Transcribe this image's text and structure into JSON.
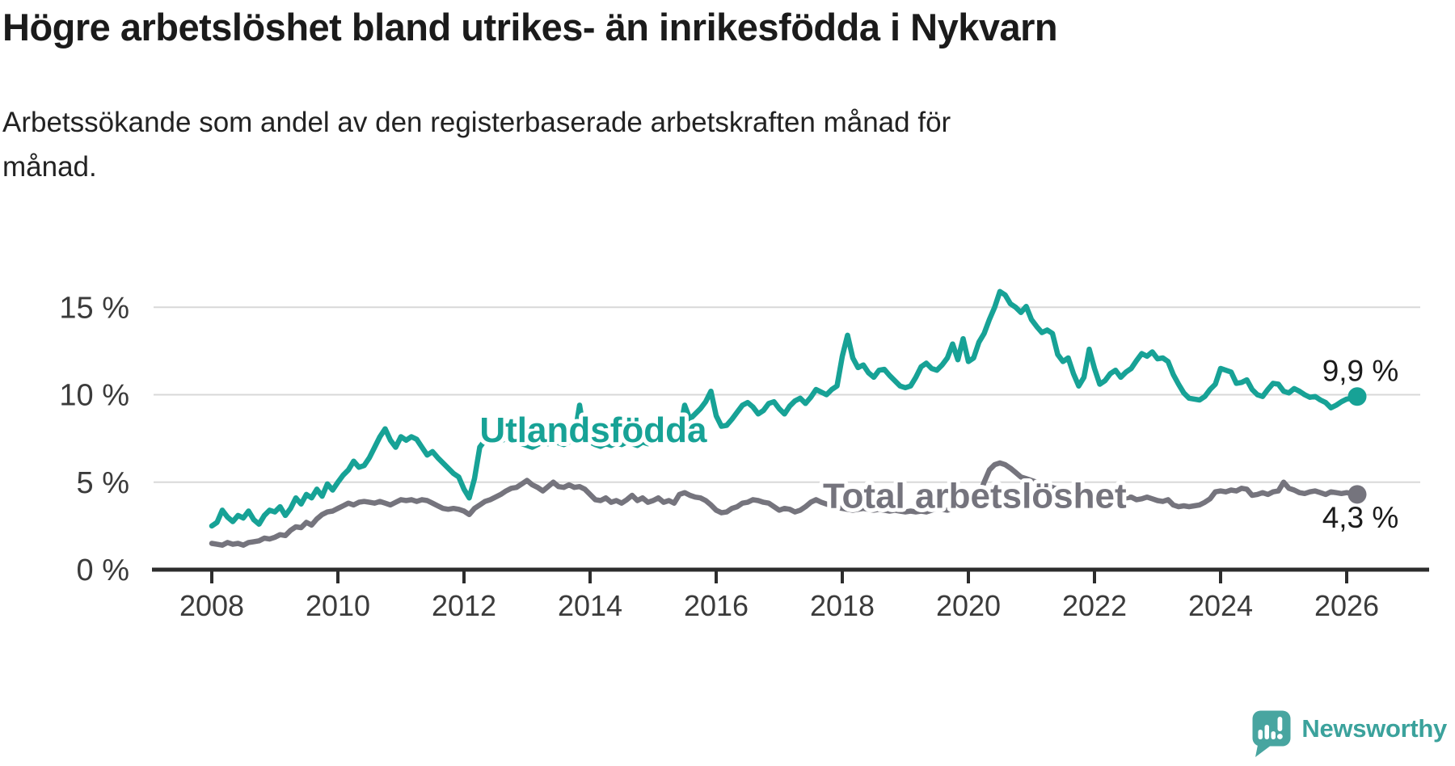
{
  "title": "Högre arbetslöshet bland utrikes- än inrikesfödda i Nykvarn",
  "subtitle_line1": "Arbetssökande som andel av den registerbaserade arbetskraften månad för",
  "subtitle_line2": "månad.",
  "branding": {
    "wordmark": "Newsworthy",
    "logo_color": "#48a5a0",
    "wordmark_color": "#3ba29c"
  },
  "chart_data": {
    "type": "line",
    "unit": "%",
    "grid": true,
    "legend": "inline-labels",
    "x_start_year": 2008,
    "x_months_per_point": 1,
    "x_range": [
      "2008-01",
      "2026-03"
    ],
    "ylim": [
      0,
      16.5
    ],
    "colors": {
      "grid": "#d8d8d8",
      "axis": "#2d2d2d",
      "tick_text": "#3b3b3b",
      "value_text": "#1b1b1b"
    },
    "x_ticks": [
      {
        "year": 2008,
        "label": "2008"
      },
      {
        "year": 2010,
        "label": "2010"
      },
      {
        "year": 2012,
        "label": "2012"
      },
      {
        "year": 2014,
        "label": "2014"
      },
      {
        "year": 2016,
        "label": "2016"
      },
      {
        "year": 2018,
        "label": "2018"
      },
      {
        "year": 2020,
        "label": "2020"
      },
      {
        "year": 2022,
        "label": "2022"
      },
      {
        "year": 2024,
        "label": "2024"
      },
      {
        "year": 2026,
        "label": "2026"
      }
    ],
    "y_ticks": [
      {
        "value": 0,
        "label": "0 %"
      },
      {
        "value": 5,
        "label": "5 %"
      },
      {
        "value": 10,
        "label": "10 %"
      },
      {
        "value": 15,
        "label": "15 %"
      }
    ],
    "series": [
      {
        "name": "Utlandsfödda",
        "slug": "utlandsfodda",
        "color": "#17a296",
        "end_label": "9,9 %",
        "end_label_position": "above",
        "label": {
          "year": 2014.05,
          "value": 7.3
        },
        "values": [
          2.5,
          2.7,
          3.4,
          3.0,
          2.75,
          3.1,
          2.95,
          3.35,
          2.85,
          2.6,
          3.1,
          3.4,
          3.3,
          3.6,
          3.1,
          3.5,
          4.1,
          3.75,
          4.3,
          4.1,
          4.6,
          4.2,
          4.9,
          4.55,
          5.0,
          5.4,
          5.7,
          6.2,
          5.85,
          5.95,
          6.4,
          7.0,
          7.6,
          8.05,
          7.4,
          7.0,
          7.6,
          7.4,
          7.6,
          7.45,
          7.0,
          6.55,
          6.75,
          6.4,
          6.1,
          5.8,
          5.5,
          5.3,
          4.6,
          4.1,
          5.2,
          7.0,
          7.4,
          7.3,
          7.45,
          7.35,
          7.5,
          7.4,
          7.3,
          7.2,
          7.1,
          7.0,
          7.15,
          7.3,
          7.2,
          7.35,
          7.25,
          7.15,
          7.3,
          7.5,
          9.4,
          7.6,
          7.3,
          7.15,
          7.05,
          7.2,
          7.1,
          7.25,
          7.15,
          7.3,
          7.2,
          7.1,
          7.3,
          7.2,
          7.3,
          7.4,
          7.3,
          7.5,
          7.6,
          7.8,
          9.4,
          8.6,
          8.9,
          9.2,
          9.6,
          10.2,
          8.8,
          8.2,
          8.25,
          8.6,
          9.0,
          9.4,
          9.55,
          9.3,
          8.9,
          9.1,
          9.5,
          9.6,
          9.2,
          8.9,
          9.35,
          9.65,
          9.8,
          9.5,
          9.85,
          10.3,
          10.15,
          10.0,
          10.3,
          10.5,
          12.2,
          13.4,
          12.1,
          11.55,
          11.7,
          11.25,
          11.0,
          11.4,
          11.45,
          11.1,
          10.8,
          10.5,
          10.4,
          10.5,
          11.0,
          11.6,
          11.8,
          11.5,
          11.4,
          11.7,
          12.1,
          12.9,
          12.0,
          13.2,
          11.9,
          12.1,
          13.0,
          13.5,
          14.3,
          15.0,
          15.9,
          15.7,
          15.2,
          15.0,
          14.7,
          15.05,
          14.3,
          13.9,
          13.55,
          13.7,
          13.5,
          12.3,
          11.9,
          12.1,
          11.2,
          10.5,
          11.0,
          12.6,
          11.5,
          10.6,
          10.8,
          11.2,
          11.4,
          11.0,
          11.3,
          11.5,
          11.95,
          12.35,
          12.2,
          12.45,
          12.05,
          12.1,
          11.9,
          11.15,
          10.6,
          10.1,
          9.8,
          9.75,
          9.7,
          9.9,
          10.3,
          10.6,
          11.5,
          11.4,
          11.3,
          10.65,
          10.7,
          10.85,
          10.3,
          10.0,
          9.9,
          10.3,
          10.65,
          10.6,
          10.2,
          10.1,
          10.35,
          10.2,
          10.0,
          9.85,
          9.9,
          9.7,
          9.55,
          9.25,
          9.4,
          9.6,
          9.75,
          9.8,
          9.9
        ]
      },
      {
        "name": "Total arbetslöshet",
        "slug": "total-arbetsloshet",
        "color": "#75747d",
        "end_label": "4,3 %",
        "end_label_position": "below",
        "label": {
          "year": 2020.1,
          "value": 3.54
        },
        "values": [
          1.5,
          1.45,
          1.4,
          1.55,
          1.45,
          1.5,
          1.4,
          1.55,
          1.6,
          1.65,
          1.8,
          1.75,
          1.85,
          2.0,
          1.95,
          2.25,
          2.45,
          2.4,
          2.7,
          2.55,
          2.9,
          3.15,
          3.3,
          3.35,
          3.5,
          3.65,
          3.8,
          3.7,
          3.85,
          3.9,
          3.85,
          3.8,
          3.9,
          3.8,
          3.7,
          3.85,
          4.0,
          3.95,
          4.0,
          3.9,
          4.0,
          3.95,
          3.8,
          3.65,
          3.5,
          3.45,
          3.5,
          3.45,
          3.35,
          3.15,
          3.5,
          3.7,
          3.9,
          4.0,
          4.15,
          4.3,
          4.5,
          4.65,
          4.7,
          4.9,
          5.1,
          4.85,
          4.7,
          4.5,
          4.75,
          5.0,
          4.75,
          4.7,
          4.85,
          4.7,
          4.75,
          4.6,
          4.3,
          4.0,
          3.95,
          4.1,
          3.85,
          3.95,
          3.8,
          4.0,
          4.25,
          3.95,
          4.1,
          3.85,
          3.95,
          4.1,
          3.85,
          3.95,
          3.8,
          4.3,
          4.4,
          4.25,
          4.15,
          4.1,
          3.95,
          3.7,
          3.4,
          3.25,
          3.3,
          3.5,
          3.6,
          3.8,
          3.85,
          4.0,
          3.95,
          3.85,
          3.8,
          3.6,
          3.4,
          3.5,
          3.45,
          3.3,
          3.4,
          3.6,
          3.85,
          4.0,
          3.85,
          3.75,
          3.65,
          3.55,
          3.5,
          3.45,
          3.4,
          3.45,
          3.5,
          3.45,
          3.4,
          3.45,
          3.4,
          3.35,
          3.4,
          3.35,
          3.3,
          3.35,
          3.3,
          3.35,
          3.3,
          3.4,
          3.5,
          3.45,
          3.4,
          3.5,
          3.55,
          3.6,
          3.7,
          3.8,
          4.2,
          5.0,
          5.7,
          6.0,
          6.1,
          6.0,
          5.8,
          5.55,
          5.3,
          5.2,
          5.1,
          5.0,
          4.9,
          4.8,
          4.7,
          4.6,
          4.5,
          4.4,
          4.3,
          4.25,
          4.2,
          4.2,
          4.15,
          4.1,
          4.1,
          4.05,
          4.1,
          4.05,
          4.1,
          4.15,
          4.0,
          4.05,
          4.15,
          4.05,
          3.95,
          3.9,
          4.0,
          3.7,
          3.6,
          3.65,
          3.6,
          3.65,
          3.7,
          3.85,
          4.05,
          4.45,
          4.5,
          4.45,
          4.55,
          4.5,
          4.65,
          4.6,
          4.25,
          4.3,
          4.4,
          4.3,
          4.45,
          4.5,
          5.0,
          4.65,
          4.55,
          4.4,
          4.35,
          4.45,
          4.5,
          4.4,
          4.3,
          4.45,
          4.4,
          4.35,
          4.4,
          4.35,
          4.3
        ]
      }
    ]
  }
}
